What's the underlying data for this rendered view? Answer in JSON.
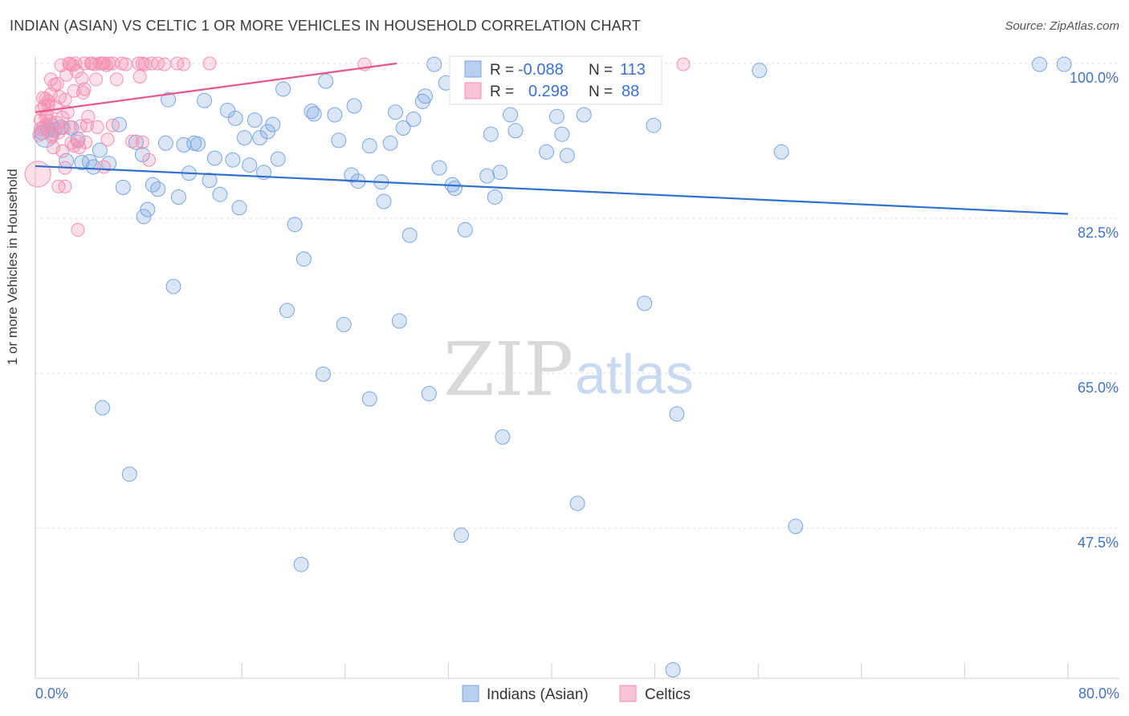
{
  "title": "INDIAN (ASIAN) VS CELTIC 1 OR MORE VEHICLES IN HOUSEHOLD CORRELATION CHART",
  "source": "Source: ZipAtlas.com",
  "watermark": {
    "zip": "ZIP",
    "atlas": "atlas"
  },
  "colors": {
    "blue": "#7aa6e0",
    "blue_line": "#2f6fce",
    "pink": "#f48fb1",
    "pink_line": "#e8578a",
    "axis_label": "#4472c4",
    "grid": "#dddddd"
  },
  "legend_top": {
    "rows": [
      {
        "r_label": "R =",
        "r_value": "-0.088",
        "n_label": "N =",
        "n_value": "113",
        "color": "blue"
      },
      {
        "r_label": "R =",
        "r_value": "0.298",
        "n_label": "N =",
        "n_value": "88",
        "color": "pink"
      }
    ]
  },
  "legend_bottom": {
    "items": [
      "Indians (Asian)",
      "Celtics"
    ]
  },
  "chart_data": {
    "type": "scatter",
    "title": "INDIAN (ASIAN) VS CELTIC 1 OR MORE VEHICLES IN HOUSEHOLD CORRELATION CHART",
    "xlabel": "",
    "ylabel": "1 or more Vehicles in Household",
    "xlim": [
      0,
      80
    ],
    "ylim": [
      30,
      100.5
    ],
    "x_tick_labels": [
      "0.0%",
      "80.0%"
    ],
    "y_ticks": [
      100,
      82.5,
      65,
      47.5
    ],
    "y_tick_labels": [
      "100.0%",
      "82.5%",
      "65.0%",
      "47.5%"
    ],
    "grid": true,
    "series": [
      {
        "name": "Indians (Asian)",
        "color": "blue",
        "trend": {
          "x": [
            0,
            80
          ],
          "y": [
            88.4,
            83.0
          ]
        },
        "points": [
          [
            0.5,
            92.2
          ],
          [
            1,
            92.5
          ],
          [
            1.2,
            93.0
          ],
          [
            1.5,
            92.5
          ],
          [
            2,
            92.8
          ],
          [
            2.4,
            89.0
          ],
          [
            2.8,
            92.7
          ],
          [
            3.3,
            91.4
          ],
          [
            3.6,
            88.8
          ],
          [
            4.2,
            88.9
          ],
          [
            4.5,
            88.3
          ],
          [
            5.0,
            90.2
          ],
          [
            5.7,
            88.7
          ],
          [
            6.5,
            93.1
          ],
          [
            6.8,
            86.0
          ],
          [
            7.8,
            91.1
          ],
          [
            8.3,
            89.7
          ],
          [
            8.4,
            82.7
          ],
          [
            8.7,
            83.5
          ],
          [
            9.1,
            86.3
          ],
          [
            9.5,
            85.8
          ],
          [
            10.1,
            91.0
          ],
          [
            10.3,
            95.9
          ],
          [
            10.7,
            74.8
          ],
          [
            11.1,
            84.9
          ],
          [
            11.5,
            90.8
          ],
          [
            11.9,
            87.6
          ],
          [
            12.3,
            91.0
          ],
          [
            12.6,
            90.9
          ],
          [
            13.1,
            95.8
          ],
          [
            13.5,
            86.8
          ],
          [
            13.9,
            89.3
          ],
          [
            14.3,
            85.2
          ],
          [
            14.9,
            94.7
          ],
          [
            15.3,
            89.1
          ],
          [
            15.5,
            93.8
          ],
          [
            15.8,
            83.7
          ],
          [
            16.2,
            91.6
          ],
          [
            16.6,
            88.5
          ],
          [
            17.0,
            93.6
          ],
          [
            17.4,
            91.6
          ],
          [
            17.7,
            87.7
          ],
          [
            18.0,
            92.3
          ],
          [
            18.4,
            93.1
          ],
          [
            18.8,
            89.2
          ],
          [
            19.2,
            97.1
          ],
          [
            19.5,
            72.1
          ],
          [
            20.1,
            81.8
          ],
          [
            20.8,
            77.9
          ],
          [
            21.4,
            94.6
          ],
          [
            21.6,
            94.3
          ],
          [
            22.3,
            64.9
          ],
          [
            22.5,
            98.0
          ],
          [
            23.2,
            94.2
          ],
          [
            23.5,
            91.3
          ],
          [
            23.9,
            70.5
          ],
          [
            24.5,
            87.4
          ],
          [
            24.7,
            95.2
          ],
          [
            25.0,
            86.7
          ],
          [
            25.9,
            90.7
          ],
          [
            25.9,
            62.1
          ],
          [
            26.8,
            86.6
          ],
          [
            27.0,
            84.4
          ],
          [
            27.5,
            91.0
          ],
          [
            27.9,
            94.5
          ],
          [
            28.2,
            70.9
          ],
          [
            28.5,
            92.7
          ],
          [
            29.0,
            80.6
          ],
          [
            29.3,
            93.7
          ],
          [
            30.0,
            95.7
          ],
          [
            30.2,
            96.3
          ],
          [
            30.5,
            62.7
          ],
          [
            30.9,
            99.9
          ],
          [
            31.3,
            88.2
          ],
          [
            31.8,
            97.8
          ],
          [
            32.3,
            86.3
          ],
          [
            32.5,
            85.9
          ],
          [
            33.0,
            46.7
          ],
          [
            33.3,
            81.2
          ],
          [
            33.7,
            98.0
          ],
          [
            35.0,
            87.3
          ],
          [
            35.3,
            92.0
          ],
          [
            35.6,
            84.9
          ],
          [
            36.0,
            87.7
          ],
          [
            36.2,
            57.8
          ],
          [
            36.8,
            94.2
          ],
          [
            37.2,
            92.4
          ],
          [
            38.1,
            99.9
          ],
          [
            38.6,
            99.8
          ],
          [
            39.6,
            90.0
          ],
          [
            40.4,
            94.0
          ],
          [
            40.8,
            92.0
          ],
          [
            41.2,
            89.6
          ],
          [
            42.0,
            50.3
          ],
          [
            42.5,
            94.2
          ],
          [
            43.0,
            99.9
          ],
          [
            47.2,
            72.9
          ],
          [
            47.9,
            93.0
          ],
          [
            49.4,
            31.5
          ],
          [
            49.7,
            60.4
          ],
          [
            56.1,
            99.2
          ],
          [
            57.8,
            90.0
          ],
          [
            58.9,
            47.7
          ],
          [
            77.8,
            99.9
          ],
          [
            79.7,
            99.9
          ],
          [
            5.2,
            61.1
          ],
          [
            7.3,
            53.6
          ],
          [
            20.6,
            43.4
          ],
          [
            0.8,
            91.8
          ]
        ]
      },
      {
        "name": "Celtics",
        "color": "pink",
        "trend": {
          "x": [
            0,
            28
          ],
          "y": [
            94.5,
            100.0
          ]
        },
        "points": [
          [
            0.2,
            87.5
          ],
          [
            0.3,
            91.9
          ],
          [
            0.4,
            93.6
          ],
          [
            0.5,
            94.8
          ],
          [
            0.6,
            92.8
          ],
          [
            0.7,
            95.2
          ],
          [
            0.8,
            96.0
          ],
          [
            0.9,
            94.2
          ],
          [
            1.0,
            95.7
          ],
          [
            1.1,
            93.5
          ],
          [
            1.2,
            96.5
          ],
          [
            1.3,
            91.7
          ],
          [
            1.4,
            90.5
          ],
          [
            1.5,
            97.6
          ],
          [
            1.6,
            95.1
          ],
          [
            1.7,
            93.3
          ],
          [
            1.8,
            92.2
          ],
          [
            1.9,
            96.2
          ],
          [
            2.0,
            99.8
          ],
          [
            2.1,
            90.1
          ],
          [
            2.2,
            92.7
          ],
          [
            2.3,
            88.2
          ],
          [
            2.4,
            98.7
          ],
          [
            2.5,
            94.5
          ],
          [
            2.6,
            100.0
          ],
          [
            2.7,
            99.9
          ],
          [
            2.8,
            91.0
          ],
          [
            2.9,
            99.8
          ],
          [
            3.0,
            96.9
          ],
          [
            3.1,
            100.0
          ],
          [
            3.2,
            99.1
          ],
          [
            3.3,
            91.2
          ],
          [
            3.4,
            90.5
          ],
          [
            3.5,
            92.9
          ],
          [
            3.6,
            98.3
          ],
          [
            3.7,
            96.7
          ],
          [
            3.8,
            100.0
          ],
          [
            3.9,
            91.1
          ],
          [
            4.0,
            93.0
          ],
          [
            4.1,
            94.0
          ],
          [
            4.3,
            100.0
          ],
          [
            4.4,
            100.0
          ],
          [
            4.6,
            99.9
          ],
          [
            4.8,
            92.8
          ],
          [
            5.0,
            100.0
          ],
          [
            5.2,
            100.0
          ],
          [
            5.3,
            100.0
          ],
          [
            5.5,
            99.8
          ],
          [
            5.7,
            100.0
          ],
          [
            6.0,
            100.0
          ],
          [
            6.3,
            98.2
          ],
          [
            6.7,
            100.0
          ],
          [
            7.0,
            99.9
          ],
          [
            7.5,
            91.2
          ],
          [
            8.0,
            100.0
          ],
          [
            8.1,
            98.5
          ],
          [
            8.3,
            100.0
          ],
          [
            8.5,
            99.9
          ],
          [
            9.0,
            100.0
          ],
          [
            9.5,
            100.0
          ],
          [
            10.0,
            99.9
          ],
          [
            11.0,
            100.0
          ],
          [
            11.5,
            99.9
          ],
          [
            13.5,
            100.0
          ],
          [
            25.5,
            99.9
          ],
          [
            50.2,
            99.9
          ],
          [
            1.8,
            86.1
          ],
          [
            2.3,
            86.1
          ],
          [
            3.3,
            81.2
          ],
          [
            5.3,
            88.3
          ],
          [
            8.8,
            89.1
          ],
          [
            8.3,
            91.1
          ],
          [
            0.9,
            93.1
          ],
          [
            1.3,
            92.0
          ],
          [
            1.0,
            95.3
          ],
          [
            0.6,
            96.1
          ],
          [
            2.1,
            93.9
          ],
          [
            3.8,
            97.1
          ],
          [
            4.7,
            98.2
          ],
          [
            1.7,
            97.7
          ],
          [
            0.4,
            92.6
          ],
          [
            2.7,
            92.8
          ],
          [
            0.8,
            94.0
          ],
          [
            5.6,
            91.4
          ],
          [
            3.0,
            90.7
          ],
          [
            1.2,
            98.2
          ],
          [
            6.0,
            93.0
          ],
          [
            2.3,
            95.9
          ]
        ]
      }
    ]
  }
}
